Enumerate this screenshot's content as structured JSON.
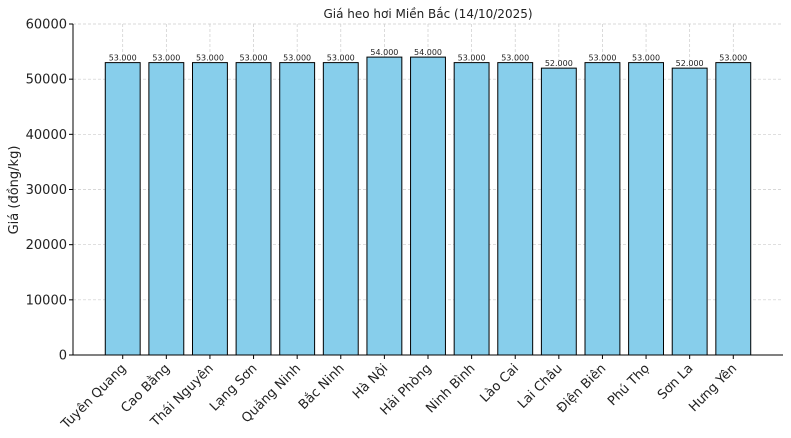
{
  "chart_data": {
    "type": "bar",
    "title": "Giá heo hơi Miền Bắc (14/10/2025)",
    "xlabel": "",
    "ylabel": "Giá (đồng/kg)",
    "categories": [
      "Tuyên Quang",
      "Cao Bằng",
      "Thái Nguyên",
      "Lạng Sơn",
      "Quảng Ninh",
      "Bắc Ninh",
      "Hà Nội",
      "Hải Phòng",
      "Ninh Bình",
      "Lào Cai",
      "Lai Châu",
      "Điện Biên",
      "Phú Thọ",
      "Sơn La",
      "Hưng Yên"
    ],
    "values": [
      53000,
      53000,
      53000,
      53000,
      53000,
      53000,
      54000,
      54000,
      53000,
      53000,
      52000,
      53000,
      53000,
      52000,
      53000
    ],
    "data_labels": [
      "53.000",
      "53.000",
      "53.000",
      "53.000",
      "53.000",
      "53.000",
      "54.000",
      "54.000",
      "53.000",
      "53.000",
      "52.000",
      "53.000",
      "53.000",
      "52.000",
      "53.000"
    ],
    "ylim": [
      0,
      60000
    ],
    "yticks": [
      "0",
      "10000",
      "20000",
      "30000",
      "40000",
      "50000",
      "60000"
    ],
    "grid": true,
    "bar_color": "#87CEEB",
    "edge_color": "#000000"
  }
}
